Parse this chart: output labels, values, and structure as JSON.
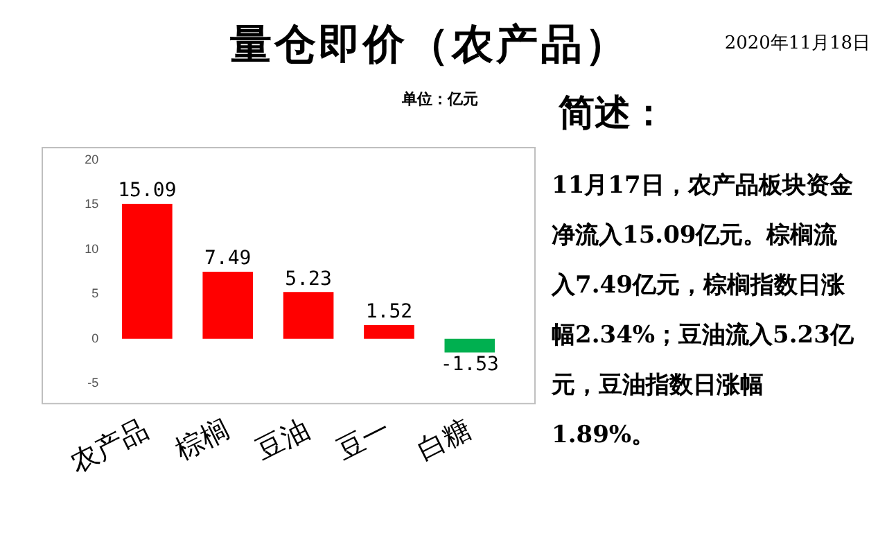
{
  "chart_data": {
    "type": "bar",
    "title": "量仓即价（农产品）",
    "ylabel": "单位：亿元",
    "categories": [
      "农产品",
      "棕榈",
      "豆油",
      "豆一",
      "白糖"
    ],
    "values": [
      15.09,
      7.49,
      5.23,
      1.52,
      -1.53
    ],
    "colors": [
      "#ff0000",
      "#ff0000",
      "#ff0000",
      "#ff0000",
      "#00b050"
    ],
    "ylim": [
      -5,
      20
    ],
    "yticks": [
      -5,
      0,
      5,
      10,
      15,
      20
    ],
    "grid": false,
    "legend": false,
    "data_labels": true,
    "annotations": [
      "2020年11月18日",
      "简述：",
      "11月17日，农产品板块资金净流入15.09亿元。棕榈流入7.49亿元，棕榈指数日涨幅2.34%；豆油流入5.23亿元，豆油指数日涨幅1.89%。"
    ]
  }
}
